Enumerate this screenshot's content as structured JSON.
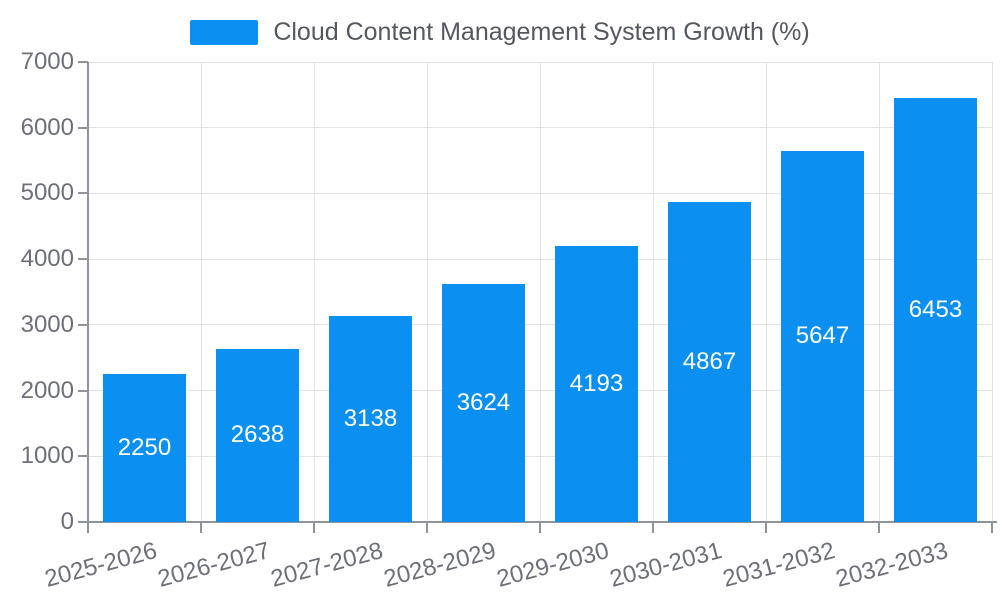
{
  "legend": {
    "label": "Cloud Content Management System Growth (%)"
  },
  "chart_data": {
    "type": "bar",
    "title": "Cloud Content Management System Growth (%)",
    "categories": [
      "2025-2026",
      "2026-2027",
      "2027-2028",
      "2028-2029",
      "2029-2030",
      "2030-2031",
      "2031-2032",
      "2032-2033"
    ],
    "values": [
      2250,
      2638,
      3138,
      3624,
      4193,
      4867,
      5647,
      6453
    ],
    "value_labels": [
      "2250",
      "2638",
      "3138",
      "3624",
      "4193",
      "4867",
      "5647",
      "6453"
    ],
    "xlabel": "",
    "ylabel": "",
    "ylim": [
      0,
      7000
    ],
    "yticks": [
      0,
      1000,
      2000,
      3000,
      4000,
      5000,
      6000,
      7000
    ],
    "grid": "horizontal and vertical light gridlines",
    "legend_position": "top-center",
    "x_label_rotation_deg": -15,
    "bar_color": "#0b90f1",
    "value_label_color": "#ffffff",
    "axis_line_color": "#8f939a",
    "grid_color": "#e2e3e8",
    "tick_label_color": "#6e7079",
    "legend_text_color": "#55585e"
  }
}
